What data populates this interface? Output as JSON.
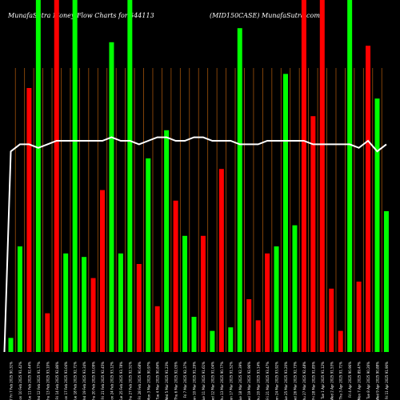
{
  "header": {
    "left": "MunafaSutra  Money Flow  Charts for 544113",
    "right": "(MID150CASE) MunafaSutra.com"
  },
  "chart_data": {
    "type": "bar",
    "title": "MunafaSutra  Money Flow  Charts for 544113",
    "subtitle": "(MID150CASE) MunafaSutra.com",
    "ylim": [
      0,
      100
    ],
    "grid": "vertical",
    "categories": [
      "F 7 Fri 7 Feb 2025 90.31%",
      "Mon 10 Feb 2025 91.42%",
      "Tue 11 Feb 2025 92.44%",
      "Wed 12 Feb 2025 91.77%",
      "Thu 13 Feb 2025 93.10%",
      "Fri 14 Feb 2025 92.86%",
      "Mon 17 Feb 2025 93.04%",
      "Tue 18 Feb 2025 92.71%",
      "Wed 19 Feb 2025 93.34%",
      "Thu 20 Feb 2025 93.09%",
      "Fri 21 Feb 2025 92.45%",
      "Mon 24 Feb 2025 93.12%",
      "Tue 25 Feb 2025 93.78%",
      "Thu 27 Feb 2025 92.51%",
      "Fri 28 Feb 2025 90.68%",
      "Mon 3 Mar 2025 90.97%",
      "Tue 4 Mar 2025 90.84%",
      "Wed 5 Mar 2025 91.23%",
      "Thu 6 Mar 2025 92.05%",
      "Fri 7 Mar 2025 92.37%",
      "Mon 10 Mar 2025 91.29%",
      "Tue 11 Mar 2025 91.61%",
      "Wed 12 Mar 2025 91.04%",
      "Thu 13 Mar 2025 90.77%",
      "Mon 17 Mar 2025 91.52%",
      "Tue 18 Mar 2025 92.39%",
      "Wed 19 Mar 2025 92.96%",
      "Thu 20 Mar 2025 93.14%",
      "Fri 21 Mar 2025 93.47%",
      "Mon 24 Mar 2025 93.92%",
      "Tue 25 Mar 2025 93.20%",
      "Wed 26 Mar 2025 92.73%",
      "Thu 27 Mar 2025 92.48%",
      "Fri 28 Mar 2025 91.85%",
      "Tue 1 Apr 2025 91.12%",
      "Wed 2 Apr 2025 91.53%",
      "Thu 3 Apr 2025 91.71%",
      "Fri 4 Apr 2025 90.96%",
      "Mon 7 Apr 2025 89.47%",
      "Tue 8 Apr 2025 90.26%",
      "Wed 9 Apr 2025 90.88%",
      "Fri 11 Apr 2025 91.90%"
    ],
    "series": [
      {
        "colors": [
          "green",
          "green",
          "red",
          "green",
          "red",
          "red",
          "green",
          "green",
          "green",
          "red",
          "red",
          "green",
          "green",
          "green",
          "red",
          "green",
          "red",
          "green",
          "red",
          "green",
          "green",
          "red",
          "green",
          "red",
          "green",
          "green",
          "red",
          "red",
          "red",
          "green",
          "green",
          "green",
          "red",
          "red",
          "red",
          "red",
          "red",
          "green",
          "red",
          "red",
          "green",
          "green"
        ],
        "values": [
          4,
          30,
          75,
          100,
          11,
          100,
          28,
          100,
          27,
          21,
          46,
          88,
          28,
          100,
          25,
          55,
          13,
          63,
          43,
          33,
          10,
          33,
          6,
          52,
          7,
          92,
          15,
          9,
          28,
          30,
          79,
          36,
          100,
          67,
          100,
          18,
          6,
          100,
          20,
          87,
          72,
          40
        ]
      }
    ],
    "line": {
      "values": [
        57,
        59,
        59,
        58,
        59,
        60,
        60,
        60,
        60,
        60,
        60,
        61,
        60,
        60,
        59,
        60,
        61,
        61,
        60,
        60,
        61,
        61,
        60,
        60,
        60,
        59,
        59,
        59,
        60,
        60,
        60,
        60,
        60,
        59,
        59,
        59,
        59,
        59,
        58,
        60,
        57,
        59
      ]
    }
  }
}
